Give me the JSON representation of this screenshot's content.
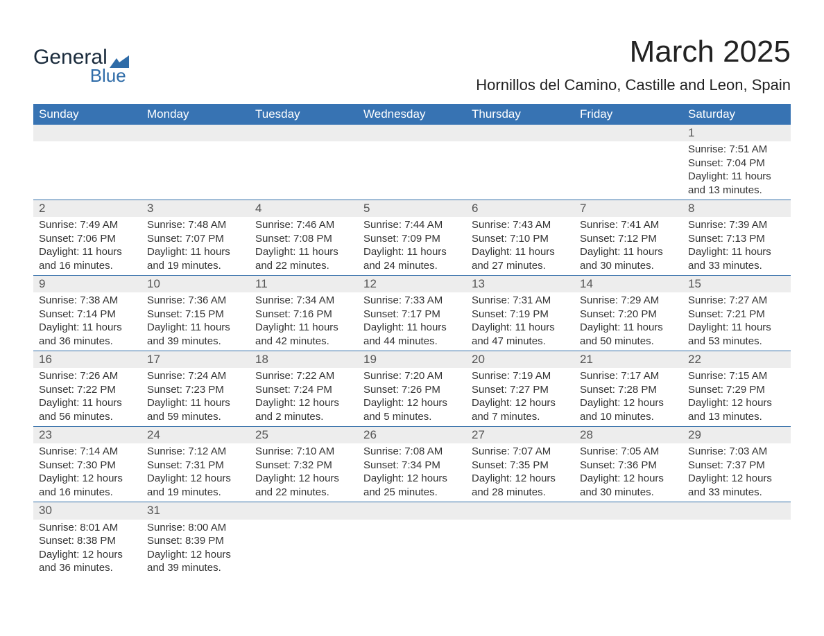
{
  "branding": {
    "logo_word1": "General",
    "logo_word2": "Blue",
    "logo_text_color": "#1a2b3c",
    "logo_accent_color": "#2f6ca8"
  },
  "header": {
    "month_title": "March 2025",
    "location": "Hornillos del Camino, Castille and Leon, Spain"
  },
  "style": {
    "th_bg": "#3773b3",
    "th_color": "#ffffff",
    "row_separator": "#2f6ca8",
    "daynum_bg": "#ededed",
    "body_bg": "#ffffff",
    "text_color": "#333333"
  },
  "calendar": {
    "day_headers": [
      "Sunday",
      "Monday",
      "Tuesday",
      "Wednesday",
      "Thursday",
      "Friday",
      "Saturday"
    ],
    "weeks": [
      [
        null,
        null,
        null,
        null,
        null,
        null,
        {
          "n": "1",
          "sunrise": "Sunrise: 7:51 AM",
          "sunset": "Sunset: 7:04 PM",
          "daylight": "Daylight: 11 hours and 13 minutes."
        }
      ],
      [
        {
          "n": "2",
          "sunrise": "Sunrise: 7:49 AM",
          "sunset": "Sunset: 7:06 PM",
          "daylight": "Daylight: 11 hours and 16 minutes."
        },
        {
          "n": "3",
          "sunrise": "Sunrise: 7:48 AM",
          "sunset": "Sunset: 7:07 PM",
          "daylight": "Daylight: 11 hours and 19 minutes."
        },
        {
          "n": "4",
          "sunrise": "Sunrise: 7:46 AM",
          "sunset": "Sunset: 7:08 PM",
          "daylight": "Daylight: 11 hours and 22 minutes."
        },
        {
          "n": "5",
          "sunrise": "Sunrise: 7:44 AM",
          "sunset": "Sunset: 7:09 PM",
          "daylight": "Daylight: 11 hours and 24 minutes."
        },
        {
          "n": "6",
          "sunrise": "Sunrise: 7:43 AM",
          "sunset": "Sunset: 7:10 PM",
          "daylight": "Daylight: 11 hours and 27 minutes."
        },
        {
          "n": "7",
          "sunrise": "Sunrise: 7:41 AM",
          "sunset": "Sunset: 7:12 PM",
          "daylight": "Daylight: 11 hours and 30 minutes."
        },
        {
          "n": "8",
          "sunrise": "Sunrise: 7:39 AM",
          "sunset": "Sunset: 7:13 PM",
          "daylight": "Daylight: 11 hours and 33 minutes."
        }
      ],
      [
        {
          "n": "9",
          "sunrise": "Sunrise: 7:38 AM",
          "sunset": "Sunset: 7:14 PM",
          "daylight": "Daylight: 11 hours and 36 minutes."
        },
        {
          "n": "10",
          "sunrise": "Sunrise: 7:36 AM",
          "sunset": "Sunset: 7:15 PM",
          "daylight": "Daylight: 11 hours and 39 minutes."
        },
        {
          "n": "11",
          "sunrise": "Sunrise: 7:34 AM",
          "sunset": "Sunset: 7:16 PM",
          "daylight": "Daylight: 11 hours and 42 minutes."
        },
        {
          "n": "12",
          "sunrise": "Sunrise: 7:33 AM",
          "sunset": "Sunset: 7:17 PM",
          "daylight": "Daylight: 11 hours and 44 minutes."
        },
        {
          "n": "13",
          "sunrise": "Sunrise: 7:31 AM",
          "sunset": "Sunset: 7:19 PM",
          "daylight": "Daylight: 11 hours and 47 minutes."
        },
        {
          "n": "14",
          "sunrise": "Sunrise: 7:29 AM",
          "sunset": "Sunset: 7:20 PM",
          "daylight": "Daylight: 11 hours and 50 minutes."
        },
        {
          "n": "15",
          "sunrise": "Sunrise: 7:27 AM",
          "sunset": "Sunset: 7:21 PM",
          "daylight": "Daylight: 11 hours and 53 minutes."
        }
      ],
      [
        {
          "n": "16",
          "sunrise": "Sunrise: 7:26 AM",
          "sunset": "Sunset: 7:22 PM",
          "daylight": "Daylight: 11 hours and 56 minutes."
        },
        {
          "n": "17",
          "sunrise": "Sunrise: 7:24 AM",
          "sunset": "Sunset: 7:23 PM",
          "daylight": "Daylight: 11 hours and 59 minutes."
        },
        {
          "n": "18",
          "sunrise": "Sunrise: 7:22 AM",
          "sunset": "Sunset: 7:24 PM",
          "daylight": "Daylight: 12 hours and 2 minutes."
        },
        {
          "n": "19",
          "sunrise": "Sunrise: 7:20 AM",
          "sunset": "Sunset: 7:26 PM",
          "daylight": "Daylight: 12 hours and 5 minutes."
        },
        {
          "n": "20",
          "sunrise": "Sunrise: 7:19 AM",
          "sunset": "Sunset: 7:27 PM",
          "daylight": "Daylight: 12 hours and 7 minutes."
        },
        {
          "n": "21",
          "sunrise": "Sunrise: 7:17 AM",
          "sunset": "Sunset: 7:28 PM",
          "daylight": "Daylight: 12 hours and 10 minutes."
        },
        {
          "n": "22",
          "sunrise": "Sunrise: 7:15 AM",
          "sunset": "Sunset: 7:29 PM",
          "daylight": "Daylight: 12 hours and 13 minutes."
        }
      ],
      [
        {
          "n": "23",
          "sunrise": "Sunrise: 7:14 AM",
          "sunset": "Sunset: 7:30 PM",
          "daylight": "Daylight: 12 hours and 16 minutes."
        },
        {
          "n": "24",
          "sunrise": "Sunrise: 7:12 AM",
          "sunset": "Sunset: 7:31 PM",
          "daylight": "Daylight: 12 hours and 19 minutes."
        },
        {
          "n": "25",
          "sunrise": "Sunrise: 7:10 AM",
          "sunset": "Sunset: 7:32 PM",
          "daylight": "Daylight: 12 hours and 22 minutes."
        },
        {
          "n": "26",
          "sunrise": "Sunrise: 7:08 AM",
          "sunset": "Sunset: 7:34 PM",
          "daylight": "Daylight: 12 hours and 25 minutes."
        },
        {
          "n": "27",
          "sunrise": "Sunrise: 7:07 AM",
          "sunset": "Sunset: 7:35 PM",
          "daylight": "Daylight: 12 hours and 28 minutes."
        },
        {
          "n": "28",
          "sunrise": "Sunrise: 7:05 AM",
          "sunset": "Sunset: 7:36 PM",
          "daylight": "Daylight: 12 hours and 30 minutes."
        },
        {
          "n": "29",
          "sunrise": "Sunrise: 7:03 AM",
          "sunset": "Sunset: 7:37 PM",
          "daylight": "Daylight: 12 hours and 33 minutes."
        }
      ],
      [
        {
          "n": "30",
          "sunrise": "Sunrise: 8:01 AM",
          "sunset": "Sunset: 8:38 PM",
          "daylight": "Daylight: 12 hours and 36 minutes."
        },
        {
          "n": "31",
          "sunrise": "Sunrise: 8:00 AM",
          "sunset": "Sunset: 8:39 PM",
          "daylight": "Daylight: 12 hours and 39 minutes."
        },
        null,
        null,
        null,
        null,
        null
      ]
    ]
  }
}
